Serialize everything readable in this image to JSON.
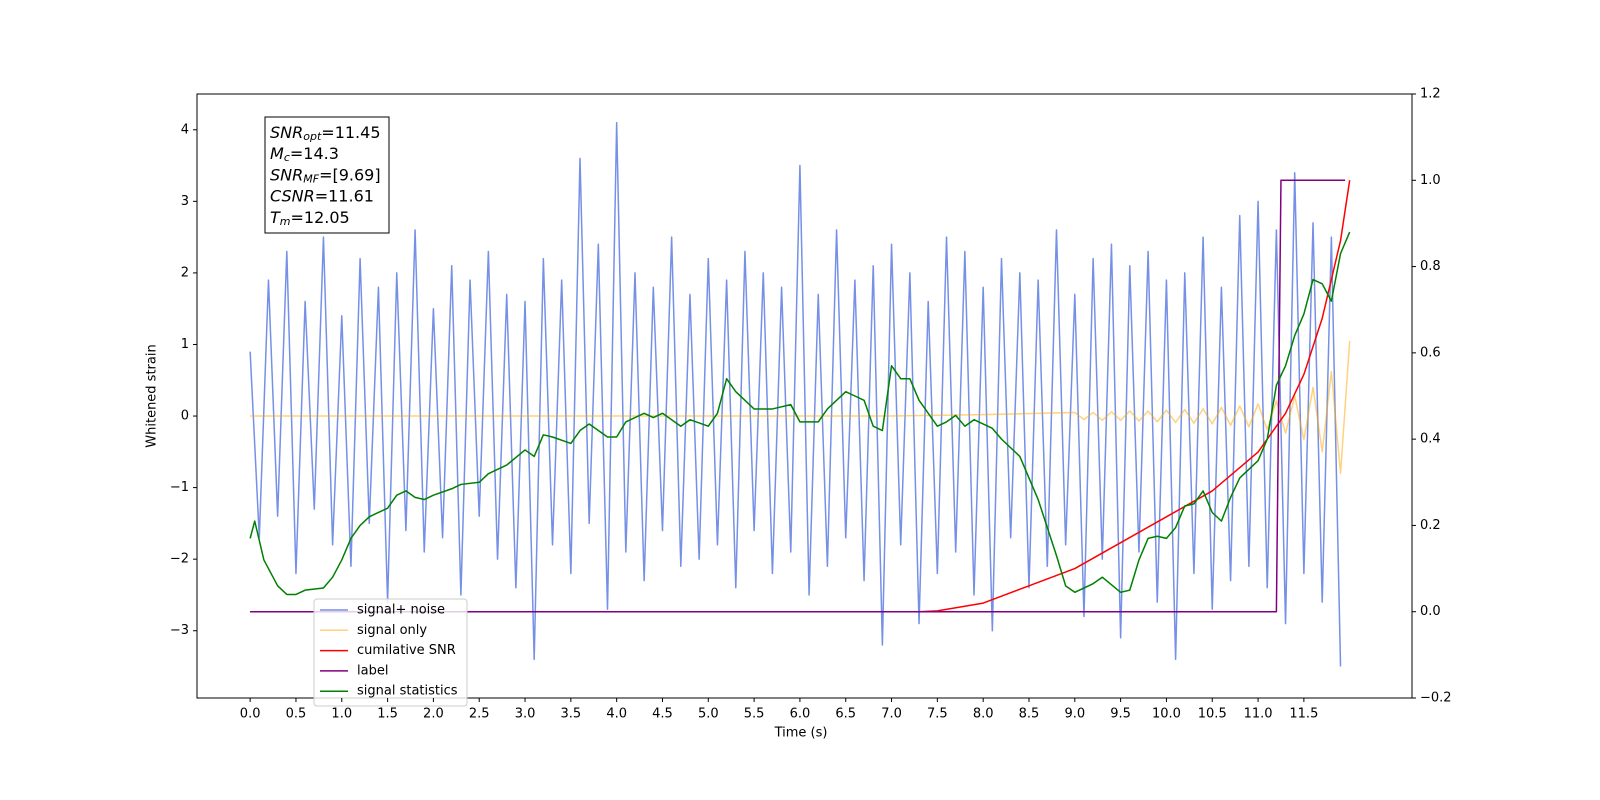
{
  "chart_data": {
    "type": "line",
    "xlabel": "Time (s)",
    "ylabel": "Whitened strain",
    "xlim": [
      -0.58,
      12.68
    ],
    "ylim": [
      -3.94,
      4.5
    ],
    "y2lim": [
      -0.2,
      1.2
    ],
    "xticks": [
      {
        "value": 0,
        "label": "0.0"
      },
      0.5,
      {
        "value": 1,
        "label": "1.0"
      },
      1.5,
      {
        "value": 2,
        "label": "2.0"
      },
      2.5,
      {
        "value": 3,
        "label": "3.0"
      },
      3.5,
      {
        "value": 4,
        "label": "4.0"
      },
      4.5,
      {
        "value": 5,
        "label": "5.0"
      },
      5.5,
      {
        "value": 6,
        "label": "6.0"
      },
      6.5,
      {
        "value": 7,
        "label": "7.0"
      },
      7.5,
      {
        "value": 8,
        "label": "8.0"
      },
      8.5,
      {
        "value": 9,
        "label": "9.0"
      },
      9.5,
      {
        "value": 10,
        "label": "10.0"
      },
      10.5,
      {
        "value": 11,
        "label": "11.0"
      },
      11.5
    ],
    "yticks": [
      {
        "value": -3,
        "label": "−3"
      },
      {
        "value": -2,
        "label": "−2"
      },
      {
        "value": -1,
        "label": "−1"
      },
      0,
      1,
      2,
      3,
      4
    ],
    "y2ticks": [
      {
        "value": -0.2,
        "label": "−0.2"
      },
      {
        "value": 0,
        "label": "0.0"
      },
      0.2,
      0.4,
      0.6,
      0.8,
      {
        "value": 1,
        "label": "1.0"
      },
      1.2
    ],
    "legend": "lower left",
    "annotations": [
      {
        "main": "SNR",
        "sub": "opt",
        "rest": "=11.45"
      },
      {
        "main": "M",
        "sub": "c",
        "rest": "=14.3"
      },
      {
        "main": "SNR",
        "sub": "MF",
        "rest": "=[9.69]"
      },
      {
        "main": "CSNR",
        "rest": "=11.61"
      },
      {
        "main": "T",
        "sub": "m",
        "rest": "=12.05"
      }
    ],
    "series": [
      {
        "name": "signal+ noise",
        "color": "#7590e6",
        "alpha": 1,
        "x": [
          0,
          0.1,
          0.2,
          0.3,
          0.4,
          0.5,
          0.6,
          0.7,
          0.8,
          0.9,
          1,
          1.1,
          1.2,
          1.3,
          1.4,
          1.5,
          1.6,
          1.7,
          1.8,
          1.9,
          2,
          2.1,
          2.2,
          2.3,
          2.4,
          2.5,
          2.6,
          2.7,
          2.8,
          2.9,
          3,
          3.1,
          3.2,
          3.3,
          3.4,
          3.5,
          3.6,
          3.7,
          3.8,
          3.9,
          4,
          4.1,
          4.2,
          4.3,
          4.4,
          4.5,
          4.6,
          4.7,
          4.8,
          4.9,
          5,
          5.1,
          5.2,
          5.3,
          5.4,
          5.5,
          5.6,
          5.7,
          5.8,
          5.9,
          6,
          6.1,
          6.2,
          6.3,
          6.4,
          6.5,
          6.6,
          6.7,
          6.8,
          6.9,
          7,
          7.1,
          7.2,
          7.3,
          7.4,
          7.5,
          7.6,
          7.7,
          7.8,
          7.9,
          8,
          8.1,
          8.2,
          8.3,
          8.4,
          8.5,
          8.6,
          8.7,
          8.8,
          8.9,
          9,
          9.1,
          9.2,
          9.3,
          9.4,
          9.5,
          9.6,
          9.7,
          9.8,
          9.9,
          10,
          10.1,
          10.2,
          10.3,
          10.4,
          10.5,
          10.6,
          10.7,
          10.8,
          10.9,
          11,
          11.1,
          11.2,
          11.3,
          11.4,
          11.5,
          11.6,
          11.7,
          11.8,
          11.9
        ],
        "values": [
          0.9,
          -1.7,
          1.9,
          -1.4,
          2.3,
          -2.2,
          1.6,
          -1.3,
          2.5,
          -1.8,
          1.4,
          -2.1,
          2.2,
          -1.5,
          1.8,
          -2.6,
          2.0,
          -1.6,
          2.6,
          -1.9,
          1.5,
          -1.7,
          2.1,
          -2.5,
          1.9,
          -1.4,
          2.3,
          -2.0,
          1.7,
          -2.4,
          1.6,
          -3.4,
          2.2,
          -1.8,
          1.9,
          -2.2,
          3.6,
          -1.5,
          2.4,
          -2.7,
          4.1,
          -1.9,
          2.0,
          -2.3,
          1.8,
          -1.6,
          2.5,
          -2.1,
          1.7,
          -2.0,
          2.2,
          -1.8,
          1.9,
          -2.4,
          2.3,
          -1.6,
          2.0,
          -2.2,
          1.8,
          -1.9,
          3.5,
          -2.5,
          1.7,
          -2.1,
          2.6,
          -1.7,
          1.9,
          -2.3,
          2.1,
          -3.2,
          2.4,
          -1.8,
          2.0,
          -2.9,
          1.6,
          -2.2,
          2.5,
          -1.9,
          2.3,
          -2.5,
          1.8,
          -3.0,
          2.2,
          -1.7,
          2.0,
          -2.4,
          1.9,
          -2.1,
          2.6,
          -1.8,
          1.7,
          -2.8,
          2.2,
          -2.0,
          2.4,
          -3.1,
          2.1,
          -1.9,
          2.3,
          -2.6,
          1.9,
          -3.4,
          2.0,
          -2.2,
          2.5,
          -2.7,
          1.8,
          -2.3,
          2.8,
          -2.1,
          3.0,
          -2.4,
          2.6,
          -2.9,
          3.4,
          -2.2,
          2.7,
          -2.6,
          2.5,
          -3.5
        ]
      },
      {
        "name": "signal only",
        "color": "#ffa500",
        "alpha": 0.5,
        "x": [
          0,
          7,
          8,
          9,
          9.1,
          9.2,
          9.3,
          9.4,
          9.5,
          9.6,
          9.7,
          9.8,
          9.9,
          10,
          10.1,
          10.2,
          10.3,
          10.4,
          10.5,
          10.6,
          10.7,
          10.8,
          10.9,
          11,
          11.1,
          11.2,
          11.3,
          11.4,
          11.5,
          11.6,
          11.7,
          11.8,
          11.9,
          12
        ],
        "values": [
          0,
          0,
          0.02,
          0.05,
          -0.05,
          0.05,
          -0.06,
          0.06,
          -0.06,
          0.07,
          -0.07,
          0.07,
          -0.08,
          0.08,
          -0.09,
          0.09,
          -0.1,
          0.1,
          -0.11,
          0.12,
          -0.13,
          0.14,
          -0.15,
          0.17,
          -0.19,
          0.21,
          -0.24,
          0.28,
          -0.33,
          0.4,
          -0.5,
          0.62,
          -0.8,
          1.05
        ]
      },
      {
        "name": "cumilative SNR",
        "color": "#ff0000",
        "alpha": 1,
        "axis": "y2",
        "x": [
          0,
          7.3,
          7.5,
          8,
          8.5,
          9,
          9.5,
          10,
          10.5,
          11,
          11.3,
          11.5,
          11.7,
          11.9,
          12
        ],
        "values": [
          0,
          0,
          0.002,
          0.02,
          0.06,
          0.1,
          0.16,
          0.22,
          0.28,
          0.37,
          0.46,
          0.55,
          0.68,
          0.86,
          1
        ]
      },
      {
        "name": "label",
        "color": "#800080",
        "alpha": 1,
        "axis": "y2",
        "x": [
          0,
          11.2,
          11.25,
          11.95
        ],
        "values": [
          0,
          0,
          1,
          1
        ]
      },
      {
        "name": "signal statistics",
        "color": "#008000",
        "alpha": 1,
        "axis": "y2",
        "x": [
          0,
          0.05,
          0.15,
          0.2,
          0.3,
          0.4,
          0.5,
          0.6,
          0.8,
          0.9,
          1,
          1.1,
          1.2,
          1.3,
          1.4,
          1.5,
          1.6,
          1.7,
          1.8,
          1.9,
          2,
          2.2,
          2.3,
          2.5,
          2.6,
          2.8,
          3,
          3.1,
          3.2,
          3.3,
          3.5,
          3.6,
          3.7,
          3.9,
          4,
          4.1,
          4.3,
          4.4,
          4.5,
          4.7,
          4.8,
          5,
          5.1,
          5.2,
          5.3,
          5.5,
          5.7,
          5.9,
          6,
          6.2,
          6.3,
          6.5,
          6.6,
          6.7,
          6.8,
          6.9,
          7,
          7.1,
          7.2,
          7.3,
          7.5,
          7.6,
          7.7,
          7.8,
          7.9,
          8.1,
          8.2,
          8.4,
          8.6,
          8.8,
          8.9,
          9,
          9.2,
          9.3,
          9.5,
          9.6,
          9.7,
          9.8,
          9.9,
          10,
          10.1,
          10.2,
          10.3,
          10.4,
          10.5,
          10.6,
          10.7,
          10.8,
          11,
          11.1,
          11.2,
          11.3,
          11.4,
          11.5,
          11.6,
          11.7,
          11.8,
          11.9,
          12
        ],
        "values": [
          0.17,
          0.21,
          0.12,
          0.1,
          0.06,
          0.04,
          0.04,
          0.05,
          0.055,
          0.08,
          0.12,
          0.17,
          0.2,
          0.22,
          0.23,
          0.24,
          0.27,
          0.28,
          0.265,
          0.26,
          0.27,
          0.285,
          0.295,
          0.3,
          0.32,
          0.34,
          0.375,
          0.36,
          0.41,
          0.405,
          0.39,
          0.42,
          0.435,
          0.405,
          0.405,
          0.44,
          0.46,
          0.45,
          0.46,
          0.43,
          0.445,
          0.43,
          0.46,
          0.54,
          0.51,
          0.47,
          0.47,
          0.48,
          0.44,
          0.44,
          0.47,
          0.51,
          0.5,
          0.49,
          0.43,
          0.42,
          0.57,
          0.54,
          0.54,
          0.49,
          0.43,
          0.44,
          0.455,
          0.43,
          0.445,
          0.425,
          0.4,
          0.36,
          0.26,
          0.13,
          0.06,
          0.045,
          0.065,
          0.08,
          0.045,
          0.05,
          0.12,
          0.17,
          0.175,
          0.17,
          0.195,
          0.245,
          0.25,
          0.28,
          0.23,
          0.21,
          0.265,
          0.31,
          0.35,
          0.4,
          0.525,
          0.57,
          0.64,
          0.69,
          0.77,
          0.76,
          0.72,
          0.83,
          0.88
        ]
      }
    ]
  }
}
